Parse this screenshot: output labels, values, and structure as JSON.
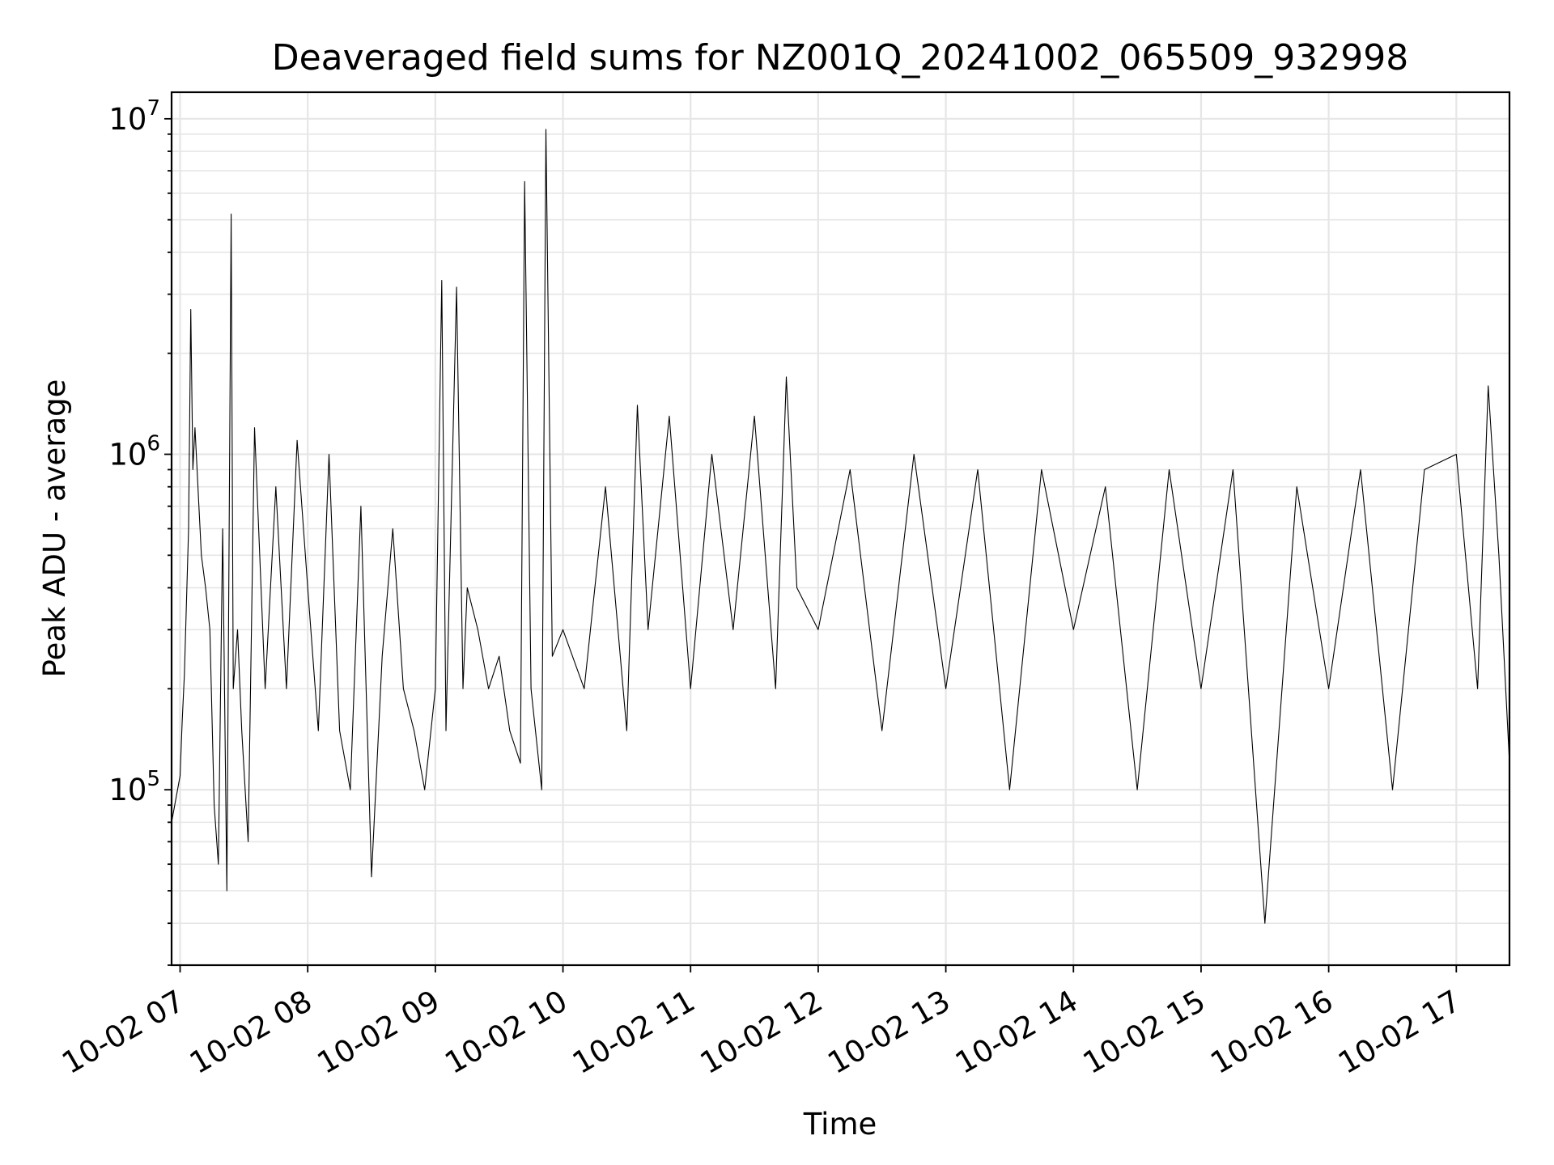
{
  "chart_data": {
    "type": "line",
    "title": "Deaveraged field sums for NZ001Q_20241002_065509_932998",
    "xlabel": "Time",
    "ylabel": "Peak ADU - average",
    "yscale": "log",
    "ylim": [
      30000,
      12000000
    ],
    "xlim": [
      "2024-10-02 06:56",
      "2024-10-02 17:25"
    ],
    "grid": true,
    "x_ticks": [
      "10-02 07",
      "10-02 08",
      "10-02 09",
      "10-02 10",
      "10-02 11",
      "10-02 12",
      "10-02 13",
      "10-02 14",
      "10-02 15",
      "10-02 16",
      "10-02 17"
    ],
    "x_tick_values": [
      "2024-10-02 07:00",
      "2024-10-02 08:00",
      "2024-10-02 09:00",
      "2024-10-02 10:00",
      "2024-10-02 11:00",
      "2024-10-02 12:00",
      "2024-10-02 13:00",
      "2024-10-02 14:00",
      "2024-10-02 15:00",
      "2024-10-02 16:00",
      "2024-10-02 17:00"
    ],
    "y_ticks": [
      {
        "value": 100000,
        "base": "10",
        "exp": "5"
      },
      {
        "value": 1000000,
        "base": "10",
        "exp": "6"
      },
      {
        "value": 10000000,
        "base": "10",
        "exp": "7"
      }
    ],
    "series": [
      {
        "color": "#000000",
        "x": [
          "2024-10-02 06:56",
          "2024-10-02 07:00",
          "2024-10-02 07:01",
          "2024-10-02 07:02",
          "2024-10-02 07:04",
          "2024-10-02 07:05",
          "2024-10-02 07:06",
          "2024-10-02 07:07",
          "2024-10-02 07:10",
          "2024-10-02 07:12",
          "2024-10-02 07:14",
          "2024-10-02 07:16",
          "2024-10-02 07:18",
          "2024-10-02 07:20",
          "2024-10-02 07:22",
          "2024-10-02 07:24",
          "2024-10-02 07:25",
          "2024-10-02 07:27",
          "2024-10-02 07:29",
          "2024-10-02 07:32",
          "2024-10-02 07:35",
          "2024-10-02 07:40",
          "2024-10-02 07:45",
          "2024-10-02 07:50",
          "2024-10-02 07:55",
          "2024-10-02 08:00",
          "2024-10-02 08:05",
          "2024-10-02 08:10",
          "2024-10-02 08:15",
          "2024-10-02 08:20",
          "2024-10-02 08:25",
          "2024-10-02 08:30",
          "2024-10-02 08:35",
          "2024-10-02 08:40",
          "2024-10-02 08:45",
          "2024-10-02 08:50",
          "2024-10-02 08:55",
          "2024-10-02 09:00",
          "2024-10-02 09:03",
          "2024-10-02 09:05",
          "2024-10-02 09:10",
          "2024-10-02 09:13",
          "2024-10-02 09:15",
          "2024-10-02 09:20",
          "2024-10-02 09:25",
          "2024-10-02 09:30",
          "2024-10-02 09:35",
          "2024-10-02 09:40",
          "2024-10-02 09:42",
          "2024-10-02 09:45",
          "2024-10-02 09:50",
          "2024-10-02 09:52",
          "2024-10-02 09:55",
          "2024-10-02 10:00",
          "2024-10-02 10:10",
          "2024-10-02 10:20",
          "2024-10-02 10:30",
          "2024-10-02 10:35",
          "2024-10-02 10:40",
          "2024-10-02 10:50",
          "2024-10-02 11:00",
          "2024-10-02 11:10",
          "2024-10-02 11:20",
          "2024-10-02 11:30",
          "2024-10-02 11:40",
          "2024-10-02 11:45",
          "2024-10-02 11:50",
          "2024-10-02 12:00",
          "2024-10-02 12:15",
          "2024-10-02 12:30",
          "2024-10-02 12:45",
          "2024-10-02 13:00",
          "2024-10-02 13:15",
          "2024-10-02 13:30",
          "2024-10-02 13:45",
          "2024-10-02 14:00",
          "2024-10-02 14:15",
          "2024-10-02 14:30",
          "2024-10-02 14:45",
          "2024-10-02 15:00",
          "2024-10-02 15:15",
          "2024-10-02 15:30",
          "2024-10-02 15:45",
          "2024-10-02 16:00",
          "2024-10-02 16:15",
          "2024-10-02 16:30",
          "2024-10-02 16:45",
          "2024-10-02 17:00",
          "2024-10-02 17:10",
          "2024-10-02 17:15",
          "2024-10-02 17:20",
          "2024-10-02 17:25"
        ],
        "y": [
          80000,
          110000,
          160000,
          220000,
          600000,
          2700000,
          900000,
          1200000,
          500000,
          400000,
          300000,
          90000,
          60000,
          600000,
          50000,
          5200000,
          200000,
          300000,
          150000,
          70000,
          1200000,
          200000,
          800000,
          200000,
          1100000,
          400000,
          150000,
          1000000,
          150000,
          100000,
          700000,
          55000,
          250000,
          600000,
          200000,
          150000,
          100000,
          200000,
          3300000,
          150000,
          3150000,
          200000,
          400000,
          300000,
          200000,
          250000,
          150000,
          120000,
          6500000,
          200000,
          100000,
          9300000,
          250000,
          300000,
          200000,
          800000,
          150000,
          1400000,
          300000,
          1300000,
          200000,
          1000000,
          300000,
          1300000,
          200000,
          1700000,
          400000,
          300000,
          900000,
          150000,
          1000000,
          200000,
          900000,
          100000,
          900000,
          300000,
          800000,
          100000,
          900000,
          200000,
          900000,
          40000,
          800000,
          200000,
          900000,
          100000,
          900000,
          1000000,
          200000,
          1600000,
          500000,
          120000
        ]
      }
    ]
  }
}
